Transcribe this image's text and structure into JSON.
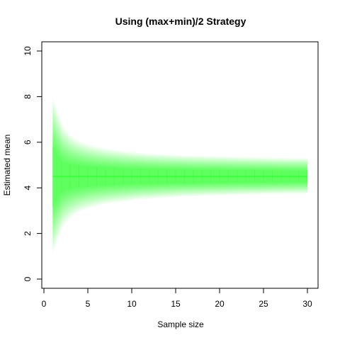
{
  "chart_data": {
    "type": "area",
    "title": "Using (max+min)/2 Strategy",
    "xlabel": "Sample size",
    "ylabel": "Estimated mean",
    "xlim": [
      0,
      30
    ],
    "ylim": [
      0,
      10
    ],
    "xticks": [
      0,
      5,
      10,
      15,
      20,
      25,
      30
    ],
    "yticks": [
      0,
      2,
      4,
      6,
      8,
      10
    ],
    "grid": false,
    "series_color": "#00ff00",
    "center": 4.5,
    "x": [
      1,
      2,
      3,
      4,
      5,
      6,
      7,
      8,
      9,
      10,
      11,
      12,
      13,
      14,
      15,
      16,
      17,
      18,
      19,
      20,
      21,
      22,
      23,
      24,
      25,
      26,
      27,
      28,
      29,
      30
    ],
    "envelope_lower": [
      1.1,
      2.2,
      2.7,
      2.95,
      3.1,
      3.2,
      3.3,
      3.35,
      3.4,
      3.45,
      3.5,
      3.52,
      3.55,
      3.57,
      3.6,
      3.62,
      3.63,
      3.65,
      3.66,
      3.67,
      3.68,
      3.69,
      3.7,
      3.71,
      3.72,
      3.73,
      3.73,
      3.74,
      3.75,
      3.75
    ],
    "envelope_upper": [
      8.0,
      6.8,
      6.3,
      6.05,
      5.9,
      5.8,
      5.72,
      5.66,
      5.61,
      5.57,
      5.53,
      5.5,
      5.48,
      5.46,
      5.44,
      5.42,
      5.41,
      5.4,
      5.39,
      5.38,
      5.37,
      5.36,
      5.35,
      5.34,
      5.33,
      5.32,
      5.31,
      5.3,
      5.3,
      5.3
    ],
    "core_lower": [
      3.2,
      3.8,
      3.95,
      4.0,
      4.05,
      4.08,
      4.1,
      4.12,
      4.14,
      4.15,
      4.16,
      4.17,
      4.18,
      4.19,
      4.2,
      4.2,
      4.21,
      4.21,
      4.22,
      4.22,
      4.22,
      4.23,
      4.23,
      4.23,
      4.24,
      4.24,
      4.24,
      4.25,
      4.25,
      4.25
    ],
    "core_upper": [
      5.8,
      5.2,
      5.05,
      5.0,
      4.95,
      4.92,
      4.9,
      4.88,
      4.86,
      4.85,
      4.84,
      4.83,
      4.82,
      4.81,
      4.8,
      4.8,
      4.79,
      4.79,
      4.78,
      4.78,
      4.78,
      4.77,
      4.77,
      4.77,
      4.76,
      4.76,
      4.76,
      4.75,
      4.75,
      4.75
    ]
  }
}
